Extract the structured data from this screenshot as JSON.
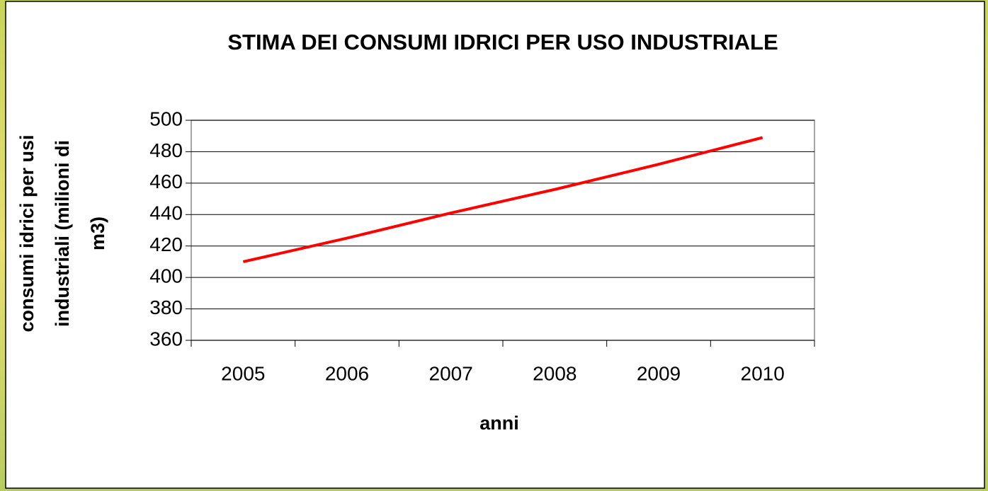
{
  "chart_data": {
    "type": "line",
    "title": "STIMA DEI CONSUMI IDRICI PER USO INDUSTRIALE",
    "xlabel": "anni",
    "ylabel": [
      "consumi idrici per usi",
      "industriali (milioni di",
      "m3)"
    ],
    "categories": [
      "2005",
      "2006",
      "2007",
      "2008",
      "2009",
      "2010"
    ],
    "values": [
      410,
      425,
      441,
      456,
      472,
      489
    ],
    "color": "#ff0000",
    "ylim": [
      360,
      500
    ],
    "yticks": [
      360,
      380,
      400,
      420,
      440,
      460,
      480,
      500
    ],
    "grid": true
  }
}
